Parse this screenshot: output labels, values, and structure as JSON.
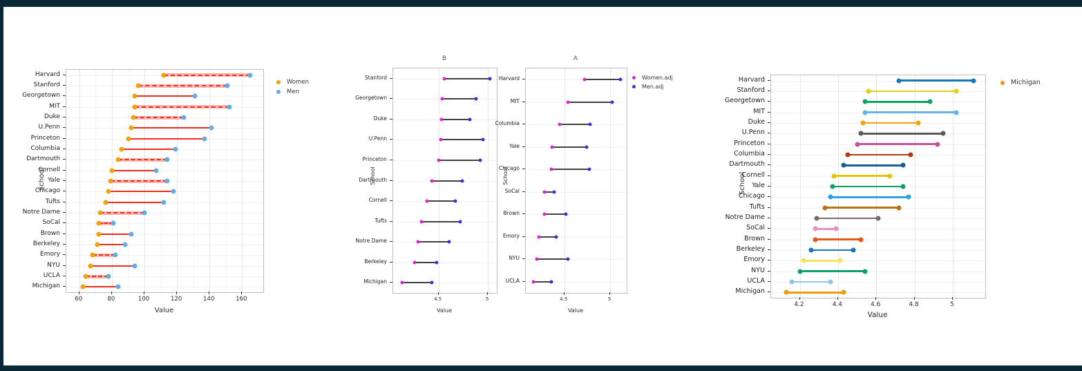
{
  "page": {
    "frame_color": "#0b2634",
    "background": "#ffffff"
  },
  "chart_data": [
    {
      "id": "earnings-dumbbell",
      "type": "dumbbell",
      "title": "",
      "xlabel": "Value",
      "ylabel": "School",
      "x_domain": [
        52,
        173
      ],
      "x_ticks": [
        60,
        80,
        100,
        120,
        140,
        160
      ],
      "x_minor_ticks": [
        70,
        90,
        110,
        130,
        150
      ],
      "grid": true,
      "legend_position": "right-top",
      "legend": [
        {
          "label": "Women",
          "color": "#f0a10e"
        },
        {
          "label": "Men",
          "color": "#62aee4"
        }
      ],
      "connector_color": "#ee2a18",
      "connector_band_color": "#f9b4af",
      "categories": [
        "Harvard",
        "Stanford",
        "Georgetown",
        "MIT",
        "Duke",
        "U.Penn",
        "Princeton",
        "Columbia",
        "Dartmouth",
        "Cornell",
        "Yale",
        "Chicago",
        "Tufts",
        "Notre Dame",
        "SoCal",
        "Brown",
        "Berkeley",
        "Emory",
        "NYU",
        "UCLA",
        "Michigan"
      ],
      "series": [
        {
          "name": "Women",
          "values": [
            112,
            96,
            94,
            94,
            93,
            92,
            90,
            86,
            84,
            80,
            79,
            78,
            76,
            73,
            72,
            72,
            71,
            68,
            67,
            64,
            62
          ]
        },
        {
          "name": "Men",
          "values": [
            165,
            151,
            131,
            152,
            124,
            141,
            137,
            119,
            114,
            107,
            114,
            118,
            112,
            100,
            81,
            92,
            88,
            82,
            94,
            78,
            84
          ]
        }
      ],
      "banded_rows": [
        true,
        true,
        false,
        true,
        true,
        false,
        false,
        false,
        true,
        false,
        true,
        false,
        false,
        true,
        true,
        false,
        false,
        true,
        false,
        true,
        false
      ]
    },
    {
      "id": "adjusted-faceted-dumbbell",
      "type": "dumbbell",
      "title": "",
      "xlabel": "Value",
      "ylabel": "School",
      "grid": true,
      "legend_position": "right-top",
      "legend": [
        {
          "label": "Women.adj",
          "color": "#e322d6"
        },
        {
          "label": "Men.adj",
          "color": "#3a2fe0"
        }
      ],
      "connector_color": "#3f3f3f",
      "facets": [
        {
          "title": "B",
          "x_domain": [
            4.04,
            5.09
          ],
          "x_ticks": [
            4.5,
            5
          ],
          "categories": [
            "Stanford",
            "Georgetown",
            "Duke",
            "U.Penn",
            "Princeton",
            "Dartmouth",
            "Cornell",
            "Tufts",
            "Notre Dame",
            "Berkeley",
            "Michigan"
          ],
          "series": [
            {
              "name": "Women.adj",
              "values": [
                4.56,
                4.54,
                4.53,
                4.52,
                4.5,
                4.43,
                4.38,
                4.33,
                4.29,
                4.26,
                4.13
              ]
            },
            {
              "name": "Men.adj",
              "values": [
                5.02,
                4.88,
                4.82,
                4.95,
                4.92,
                4.74,
                4.67,
                4.72,
                4.61,
                4.48,
                4.43
              ]
            }
          ]
        },
        {
          "title": "A",
          "x_domain": [
            4.08,
            5.18
          ],
          "x_ticks": [
            4.5,
            5
          ],
          "categories": [
            "Harvard",
            "MIT",
            "Columbia",
            "Yale",
            "Chicago",
            "SoCal",
            "Brown",
            "Emory",
            "NYU",
            "UCLA"
          ],
          "series": [
            {
              "name": "Women.adj",
              "values": [
                4.72,
                4.54,
                4.45,
                4.37,
                4.36,
                4.28,
                4.28,
                4.22,
                4.2,
                4.16
              ]
            },
            {
              "name": "Men.adj",
              "values": [
                5.11,
                5.02,
                4.78,
                4.74,
                4.77,
                4.39,
                4.52,
                4.41,
                4.54,
                4.36
              ]
            }
          ]
        }
      ]
    },
    {
      "id": "adjusted-by-school-dumbbell",
      "type": "dumbbell",
      "title": "",
      "xlabel": "Value",
      "ylabel": "School",
      "x_domain": [
        4.05,
        5.17
      ],
      "x_ticks": [
        4.2,
        4.4,
        4.6,
        4.8,
        5
      ],
      "grid": true,
      "legend_position": "right-top",
      "legend": [
        {
          "label": "Michigan",
          "color": "#f0990f"
        }
      ],
      "categories": [
        "Harvard",
        "Stanford",
        "Georgetown",
        "MIT",
        "Duke",
        "U.Penn",
        "Princeton",
        "Columbia",
        "Dartmouth",
        "Cornell",
        "Yale",
        "Chicago",
        "Tufts",
        "Notre Dame",
        "SoCal",
        "Brown",
        "Berkeley",
        "Emory",
        "NYU",
        "UCLA",
        "Michigan"
      ],
      "series": [
        {
          "name": "Women.adj",
          "values": [
            4.72,
            4.56,
            4.54,
            4.54,
            4.53,
            4.52,
            4.5,
            4.45,
            4.43,
            4.38,
            4.37,
            4.36,
            4.33,
            4.29,
            4.28,
            4.28,
            4.26,
            4.22,
            4.2,
            4.16,
            4.13
          ]
        },
        {
          "name": "Men.adj",
          "values": [
            5.11,
            5.02,
            4.88,
            5.02,
            4.82,
            4.95,
            4.92,
            4.78,
            4.74,
            4.67,
            4.74,
            4.77,
            4.72,
            4.61,
            4.39,
            4.52,
            4.48,
            4.41,
            4.54,
            4.36,
            4.43
          ]
        }
      ],
      "row_colors": [
        "#1776b6",
        "#e4cf1b",
        "#0fa360",
        "#63b5e8",
        "#f2a20d",
        "#595959",
        "#c9519c",
        "#ad3c0e",
        "#1b5a99",
        "#dcc70e",
        "#0e9e63",
        "#2ba3df",
        "#b8720d",
        "#6e6e6e",
        "#e88fc0",
        "#e5561b",
        "#1b74c2",
        "#f5e45e",
        "#0f9e6e",
        "#8ec7ed",
        "#f0990f"
      ]
    }
  ]
}
